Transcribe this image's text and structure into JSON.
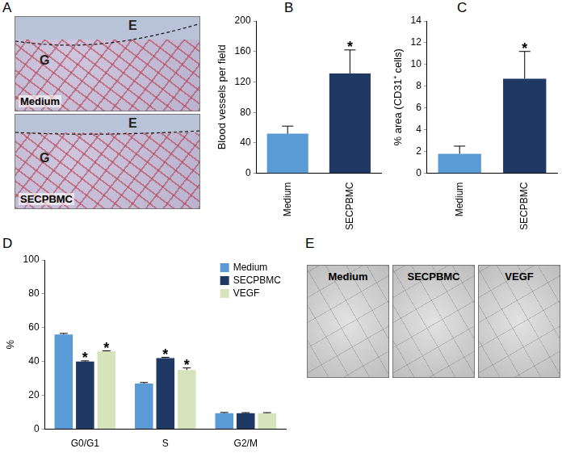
{
  "panel_A": {
    "label": "A",
    "images": [
      {
        "caption": "Medium",
        "regions": [
          "E",
          "G"
        ]
      },
      {
        "caption": "SECPBMC",
        "regions": [
          "E",
          "G"
        ]
      }
    ]
  },
  "chart_data": [
    {
      "panel": "B",
      "type": "bar",
      "categories": [
        "Medium",
        "SECPBMC"
      ],
      "values": [
        52,
        131
      ],
      "errors": [
        10,
        31
      ],
      "colors": [
        "#5b9bd5",
        "#1f3864"
      ],
      "ylabel": "Blood vessels per field",
      "ylim": [
        0,
        200
      ],
      "yticks": [
        0,
        40,
        80,
        120,
        160,
        200
      ],
      "grid": false,
      "annotations": [
        {
          "category": "SECPBMC",
          "text": "*"
        }
      ]
    },
    {
      "panel": "C",
      "type": "bar",
      "categories": [
        "Medium",
        "SECPBMC"
      ],
      "values": [
        1.8,
        8.7
      ],
      "errors": [
        0.7,
        2.5
      ],
      "colors": [
        "#5b9bd5",
        "#1f3864"
      ],
      "ylabel": "% area (CD31⁺ cells)",
      "ylim": [
        0,
        14
      ],
      "yticks": [
        0,
        2,
        4,
        6,
        8,
        10,
        12,
        14
      ],
      "grid": false,
      "annotations": [
        {
          "category": "SECPBMC",
          "text": "*"
        }
      ]
    },
    {
      "panel": "D",
      "type": "bar",
      "categories": [
        "G0/G1",
        "S",
        "G2/M"
      ],
      "series": [
        {
          "name": "Medium",
          "color": "#5b9bd5",
          "values": [
            56,
            27,
            9.5
          ],
          "errors": [
            0.6,
            0.6,
            0.4
          ]
        },
        {
          "name": "SECPBMC",
          "color": "#1f3864",
          "values": [
            40,
            42,
            9.5
          ],
          "errors": [
            0.4,
            0.5,
            0.3
          ]
        },
        {
          "name": "VEGF",
          "color": "#d6e4bc",
          "values": [
            46,
            35,
            9.5
          ],
          "errors": [
            0.3,
            1.2,
            0.3
          ]
        }
      ],
      "ylabel": "%",
      "ylim": [
        0,
        100
      ],
      "yticks": [
        0,
        20,
        40,
        60,
        80,
        100
      ],
      "grid": false,
      "legend": "top-right",
      "annotations": [
        {
          "series": "SECPBMC",
          "category": "G0/G1",
          "text": "*"
        },
        {
          "series": "VEGF",
          "category": "G0/G1",
          "text": "*"
        },
        {
          "series": "SECPBMC",
          "category": "S",
          "text": "*"
        },
        {
          "series": "VEGF",
          "category": "S",
          "text": "*"
        }
      ]
    }
  ],
  "panel_E": {
    "label": "E",
    "images": [
      {
        "caption": "Medium"
      },
      {
        "caption": "SECPBMC"
      },
      {
        "caption": "VEGF"
      }
    ]
  }
}
